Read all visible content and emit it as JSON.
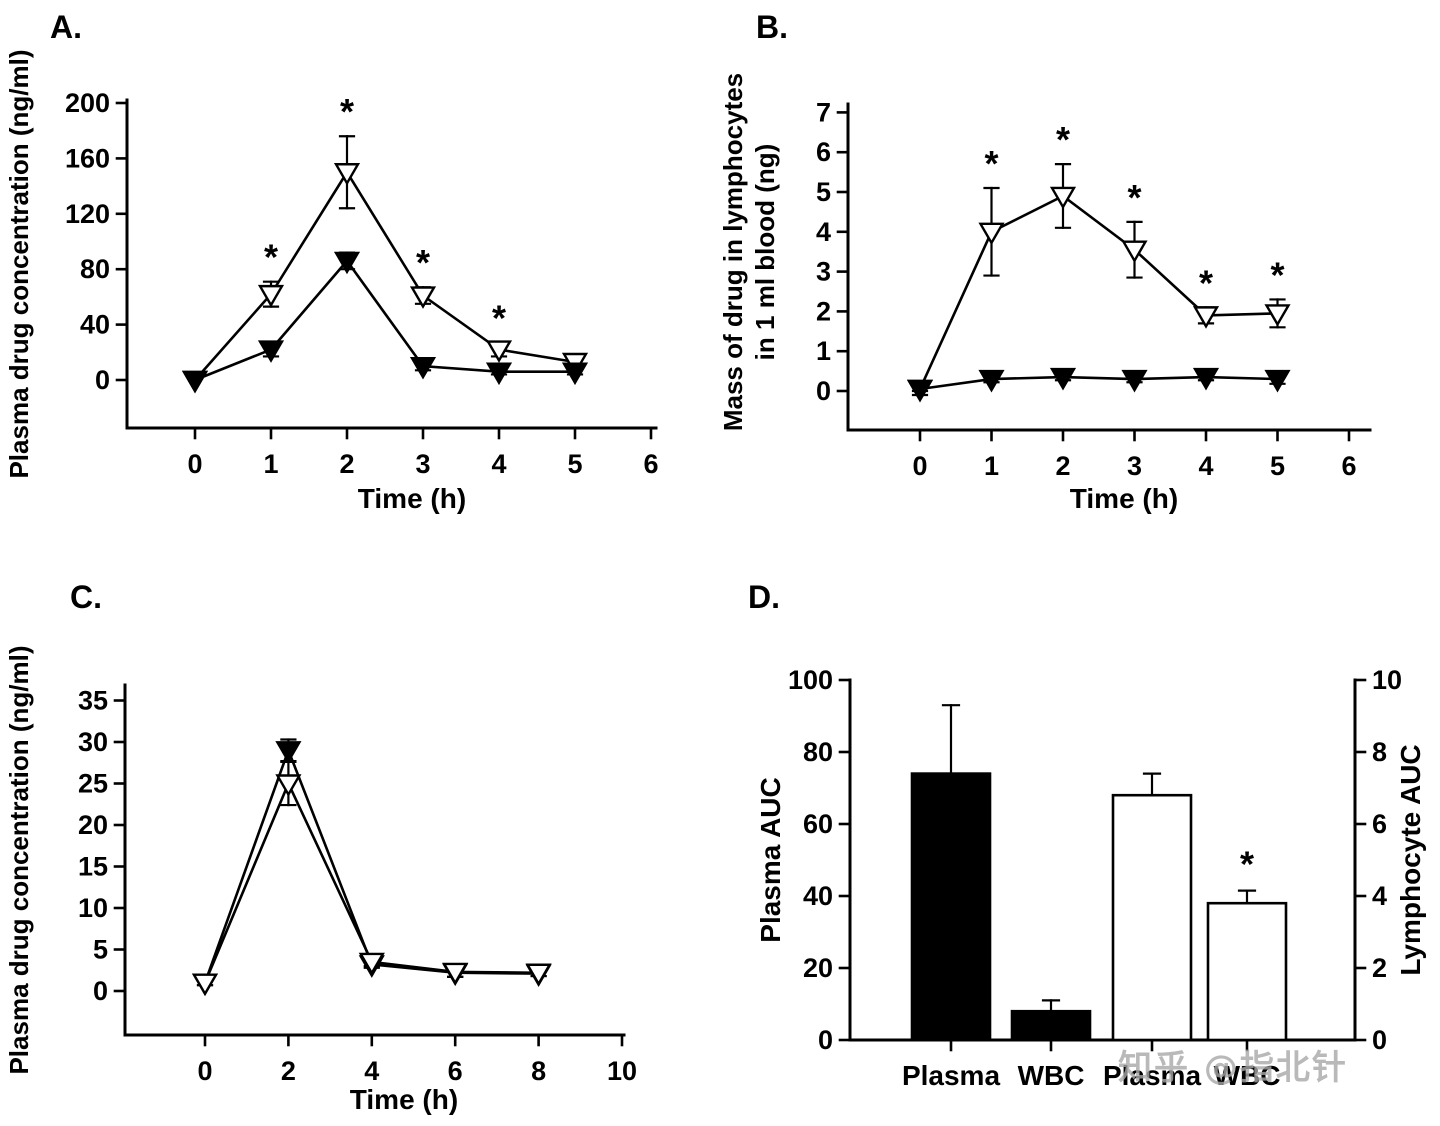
{
  "figure": {
    "background": "#ffffff",
    "ink_color": "#000000"
  },
  "watermark": {
    "text": "知乎 @指北针",
    "color": "#a8a8a8"
  },
  "chart_data": [
    {
      "id": "A",
      "type": "line",
      "panel_label": "A.",
      "xlabel": "Time (h)",
      "ylabel_lines": [
        "Plasma drug concentration (ng/ml)"
      ],
      "xticks": [
        0,
        1,
        2,
        3,
        4,
        5,
        6
      ],
      "yticks": [
        0,
        40,
        80,
        120,
        160,
        200
      ],
      "xlim": [
        0,
        6
      ],
      "ylim": [
        0,
        200
      ],
      "legend": "none",
      "grid": false,
      "series": [
        {
          "name": "open-triangle-series",
          "marker": "triangle-down-open",
          "x": [
            0,
            1,
            2,
            3,
            4,
            5
          ],
          "values": [
            0,
            62,
            150,
            61,
            22,
            13
          ],
          "errors": [
            0,
            9,
            26,
            6,
            5,
            3
          ],
          "asterisks": [
            false,
            true,
            true,
            true,
            true,
            false
          ]
        },
        {
          "name": "filled-triangle-series",
          "marker": "triangle-down-filled",
          "x": [
            0,
            1,
            2,
            3,
            4,
            5
          ],
          "values": [
            0,
            22,
            86,
            10,
            6,
            6
          ],
          "errors": [
            0,
            5,
            6,
            3,
            2,
            2
          ],
          "asterisks": [
            false,
            false,
            false,
            false,
            false,
            false
          ]
        }
      ]
    },
    {
      "id": "B",
      "type": "line",
      "panel_label": "B.",
      "xlabel": "Time (h)",
      "ylabel_lines": [
        "Mass of drug in lymphocytes",
        "in 1 ml blood (ng)"
      ],
      "xticks": [
        0,
        1,
        2,
        3,
        4,
        5,
        6
      ],
      "yticks": [
        0,
        1,
        2,
        3,
        4,
        5,
        6,
        7
      ],
      "xlim": [
        0,
        6
      ],
      "ylim": [
        0,
        7
      ],
      "legend": "none",
      "grid": false,
      "series": [
        {
          "name": "open-triangle-series",
          "marker": "triangle-down-open",
          "x": [
            0,
            1,
            2,
            3,
            4,
            5
          ],
          "values": [
            0.05,
            4.0,
            4.9,
            3.55,
            1.9,
            1.95
          ],
          "errors": [
            0.15,
            1.1,
            0.8,
            0.7,
            0.2,
            0.35
          ],
          "asterisks": [
            false,
            true,
            true,
            true,
            true,
            true
          ]
        },
        {
          "name": "filled-triangle-series",
          "marker": "triangle-down-filled",
          "x": [
            0,
            1,
            2,
            3,
            4,
            5
          ],
          "values": [
            0.05,
            0.3,
            0.35,
            0.3,
            0.35,
            0.3
          ],
          "errors": [
            0.05,
            0.08,
            0.08,
            0.08,
            0.08,
            0.12
          ],
          "asterisks": [
            false,
            false,
            false,
            false,
            false,
            false
          ]
        }
      ]
    },
    {
      "id": "C",
      "type": "line",
      "panel_label": "C.",
      "xlabel": "Time (h)",
      "ylabel_lines": [
        "Plasma drug concentration (ng/ml)"
      ],
      "xticks": [
        0,
        2,
        4,
        6,
        8,
        10
      ],
      "yticks": [
        0,
        5,
        10,
        15,
        20,
        25,
        30,
        35
      ],
      "xlim": [
        0,
        10
      ],
      "ylim": [
        0,
        35
      ],
      "legend": "none",
      "grid": false,
      "series": [
        {
          "name": "filled-triangle-series",
          "marker": "triangle-down-filled",
          "x": [
            0,
            2,
            4,
            6,
            8
          ],
          "values": [
            1,
            29,
            3.2,
            2.2,
            2.1
          ],
          "errors": [
            0.3,
            1.3,
            0.4,
            0.5,
            0.3
          ],
          "asterisks": [
            false,
            false,
            false,
            false,
            false
          ]
        },
        {
          "name": "open-triangle-series",
          "marker": "triangle-down-open",
          "x": [
            0,
            2,
            4,
            6,
            8
          ],
          "values": [
            1,
            25,
            3.5,
            2.3,
            2.2
          ],
          "errors": [
            0.3,
            2.6,
            0.5,
            0.6,
            0.4
          ],
          "asterisks": [
            false,
            false,
            false,
            false,
            false
          ]
        }
      ]
    },
    {
      "id": "D",
      "type": "bar",
      "panel_label": "D.",
      "left_axis": {
        "label": "Plasma AUC",
        "ticks": [
          0,
          20,
          40,
          60,
          80,
          100
        ],
        "range": [
          0,
          100
        ]
      },
      "right_axis": {
        "label": "Lymphocyte AUC",
        "ticks": [
          0,
          2,
          4,
          6,
          8,
          10
        ],
        "range": [
          0,
          10
        ]
      },
      "bars": [
        {
          "label": "Plasma",
          "value": 74,
          "error": 19,
          "fill": "black",
          "axis": "left",
          "asterisk": false
        },
        {
          "label": "WBC",
          "value": 8,
          "error": 3,
          "fill": "black",
          "axis": "left",
          "asterisk": false
        },
        {
          "label": "Plasma",
          "value": 6.8,
          "error": 0.6,
          "fill": "white",
          "axis": "right",
          "asterisk": false
        },
        {
          "label": "WBC",
          "value": 3.8,
          "error": 0.35,
          "fill": "white",
          "axis": "right",
          "asterisk": true
        }
      ]
    }
  ]
}
